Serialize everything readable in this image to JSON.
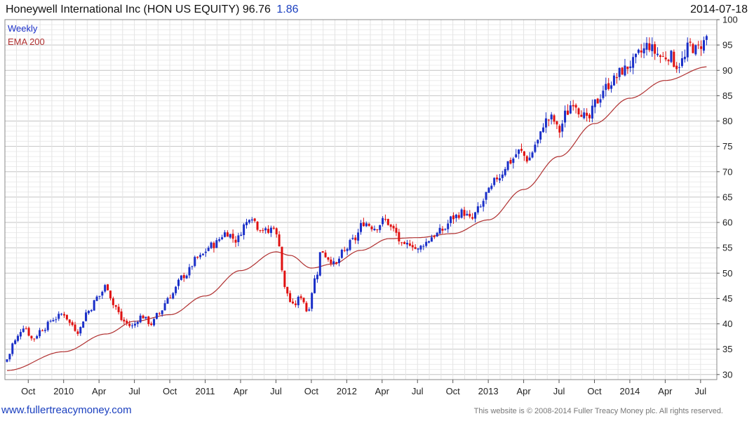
{
  "header": {
    "title": "Honeywell International Inc (HON US EQUITY) 96.76",
    "change": "1.86",
    "date": "2014-07-18"
  },
  "legend": {
    "series": "Weekly",
    "ema": "EMA 200"
  },
  "footer": {
    "site": "www.fullertreacymoney.com",
    "copyright": "This website is © 2008-2014 Fuller Treacy Money plc. All rights reserved."
  },
  "colors": {
    "up": "#1a2fc8",
    "down": "#e01010",
    "ema": "#b03030",
    "grid": "#d6d6d6"
  },
  "chart_data": {
    "type": "candlestick",
    "title": "Honeywell International Inc (HON US EQUITY) 96.76 1.86",
    "frequency": "weekly",
    "ylim": [
      29,
      100
    ],
    "yticks": [
      30,
      35,
      40,
      45,
      50,
      55,
      60,
      65,
      70,
      75,
      80,
      85,
      90,
      95,
      100
    ],
    "x_range": [
      2009.6,
      2014.58
    ],
    "xticks": [
      {
        "label": "Oct",
        "t": 2009.75
      },
      {
        "label": "2010",
        "t": 2010.0
      },
      {
        "label": "Apr",
        "t": 2010.25
      },
      {
        "label": "Jul",
        "t": 2010.5
      },
      {
        "label": "Oct",
        "t": 2010.75
      },
      {
        "label": "2011",
        "t": 2011.0
      },
      {
        "label": "Apr",
        "t": 2011.25
      },
      {
        "label": "Jul",
        "t": 2011.5
      },
      {
        "label": "Oct",
        "t": 2011.75
      },
      {
        "label": "2012",
        "t": 2012.0
      },
      {
        "label": "Apr",
        "t": 2012.25
      },
      {
        "label": "Jul",
        "t": 2012.5
      },
      {
        "label": "Oct",
        "t": 2012.75
      },
      {
        "label": "2013",
        "t": 2013.0
      },
      {
        "label": "Apr",
        "t": 2013.25
      },
      {
        "label": "Jul",
        "t": 2013.5
      },
      {
        "label": "Oct",
        "t": 2013.75
      },
      {
        "label": "2014",
        "t": 2014.0
      },
      {
        "label": "Apr",
        "t": 2014.25
      },
      {
        "label": "Jul",
        "t": 2014.5
      }
    ],
    "price_anchors": [
      [
        2009.6,
        33.0
      ],
      [
        2009.65,
        36.5
      ],
      [
        2009.72,
        39.5
      ],
      [
        2009.78,
        37.0
      ],
      [
        2009.85,
        39.0
      ],
      [
        2009.93,
        41.0
      ],
      [
        2010.0,
        42.0
      ],
      [
        2010.05,
        40.0
      ],
      [
        2010.1,
        38.5
      ],
      [
        2010.17,
        42.5
      ],
      [
        2010.25,
        45.5
      ],
      [
        2010.3,
        47.5
      ],
      [
        2010.36,
        43.5
      ],
      [
        2010.42,
        40.5
      ],
      [
        2010.48,
        39.5
      ],
      [
        2010.55,
        41.5
      ],
      [
        2010.62,
        40.0
      ],
      [
        2010.67,
        42.0
      ],
      [
        2010.75,
        45.5
      ],
      [
        2010.85,
        49.5
      ],
      [
        2010.95,
        53.0
      ],
      [
        2011.05,
        55.5
      ],
      [
        2011.15,
        58.0
      ],
      [
        2011.22,
        56.5
      ],
      [
        2011.28,
        59.5
      ],
      [
        2011.32,
        61.5
      ],
      [
        2011.38,
        59.0
      ],
      [
        2011.45,
        58.0
      ],
      [
        2011.48,
        59.5
      ],
      [
        2011.52,
        56.0
      ],
      [
        2011.56,
        47.0
      ],
      [
        2011.62,
        43.5
      ],
      [
        2011.68,
        45.5
      ],
      [
        2011.72,
        42.5
      ],
      [
        2011.78,
        49.0
      ],
      [
        2011.82,
        54.5
      ],
      [
        2011.87,
        53.0
      ],
      [
        2011.92,
        51.5
      ],
      [
        2011.97,
        54.0
      ],
      [
        2012.05,
        56.5
      ],
      [
        2012.12,
        60.0
      ],
      [
        2012.2,
        59.0
      ],
      [
        2012.27,
        60.5
      ],
      [
        2012.33,
        58.5
      ],
      [
        2012.4,
        55.0
      ],
      [
        2012.45,
        56.0
      ],
      [
        2012.5,
        54.5
      ],
      [
        2012.55,
        56.0
      ],
      [
        2012.62,
        57.5
      ],
      [
        2012.68,
        58.5
      ],
      [
        2012.75,
        61.0
      ],
      [
        2012.82,
        62.0
      ],
      [
        2012.88,
        60.5
      ],
      [
        2012.93,
        62.5
      ],
      [
        2013.0,
        66.0
      ],
      [
        2013.07,
        69.0
      ],
      [
        2013.15,
        72.0
      ],
      [
        2013.22,
        74.0
      ],
      [
        2013.28,
        72.5
      ],
      [
        2013.35,
        76.0
      ],
      [
        2013.4,
        80.0
      ],
      [
        2013.45,
        80.5
      ],
      [
        2013.5,
        78.0
      ],
      [
        2013.55,
        81.5
      ],
      [
        2013.6,
        84.0
      ],
      [
        2013.65,
        82.0
      ],
      [
        2013.7,
        80.0
      ],
      [
        2013.77,
        84.0
      ],
      [
        2013.82,
        86.5
      ],
      [
        2013.88,
        88.0
      ],
      [
        2013.95,
        90.0
      ],
      [
        2014.02,
        91.5
      ],
      [
        2014.08,
        93.5
      ],
      [
        2014.13,
        95.0
      ],
      [
        2014.18,
        93.5
      ],
      [
        2014.23,
        92.5
      ],
      [
        2014.28,
        93.0
      ],
      [
        2014.33,
        91.0
      ],
      [
        2014.38,
        92.0
      ],
      [
        2014.42,
        95.0
      ],
      [
        2014.47,
        94.0
      ],
      [
        2014.52,
        95.5
      ],
      [
        2014.55,
        96.76
      ]
    ],
    "ema_anchors": [
      [
        2009.6,
        30.8
      ],
      [
        2010.0,
        34.5
      ],
      [
        2010.3,
        38.0
      ],
      [
        2010.5,
        40.5
      ],
      [
        2010.75,
        41.8
      ],
      [
        2011.0,
        45.5
      ],
      [
        2011.25,
        50.5
      ],
      [
        2011.5,
        54.2
      ],
      [
        2011.6,
        53.5
      ],
      [
        2011.75,
        51.0
      ],
      [
        2011.9,
        51.8
      ],
      [
        2012.1,
        54.5
      ],
      [
        2012.3,
        56.8
      ],
      [
        2012.5,
        57.0
      ],
      [
        2012.75,
        57.8
      ],
      [
        2013.0,
        60.5
      ],
      [
        2013.25,
        66.5
      ],
      [
        2013.5,
        73.0
      ],
      [
        2013.75,
        79.5
      ],
      [
        2014.0,
        84.5
      ],
      [
        2014.25,
        88.0
      ],
      [
        2014.55,
        90.7
      ]
    ]
  }
}
